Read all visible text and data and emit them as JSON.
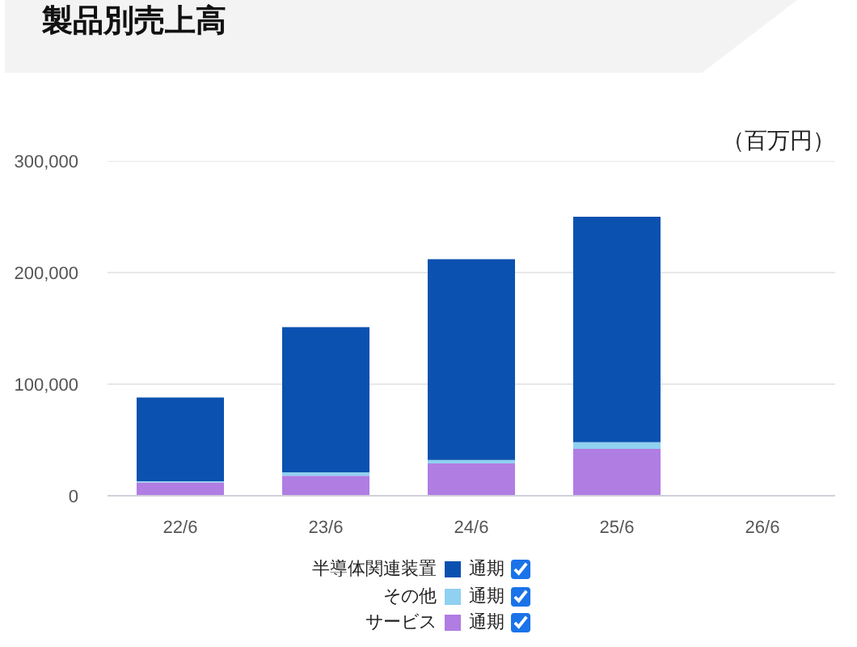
{
  "chart_data": {
    "type": "bar",
    "title": "製品別売上高",
    "ylabel": "（百万円）",
    "categories": [
      "22/6",
      "23/6",
      "24/6",
      "25/6",
      "26/6"
    ],
    "stacked": true,
    "series": [
      {
        "name": "サービス",
        "color": "#b07de3",
        "values": [
          12000,
          18000,
          29000,
          42000,
          null
        ]
      },
      {
        "name": "その他",
        "color": "#90d0f0",
        "values": [
          1000,
          3000,
          3000,
          6000,
          null
        ]
      },
      {
        "name": "半導体関連装置",
        "color": "#0b51b0",
        "values": [
          75000,
          130000,
          180000,
          202000,
          null
        ]
      }
    ],
    "ylim": [
      0,
      300000
    ],
    "yticks": [
      0,
      {
        "value": 100000,
        "label": "100,000"
      },
      {
        "value": 200000,
        "label": "200,000"
      },
      {
        "value": 300000,
        "label": "300,000"
      }
    ],
    "grid": "y",
    "legend": "bottom",
    "annotations": [
      "通期",
      "通期",
      "通期"
    ]
  }
}
